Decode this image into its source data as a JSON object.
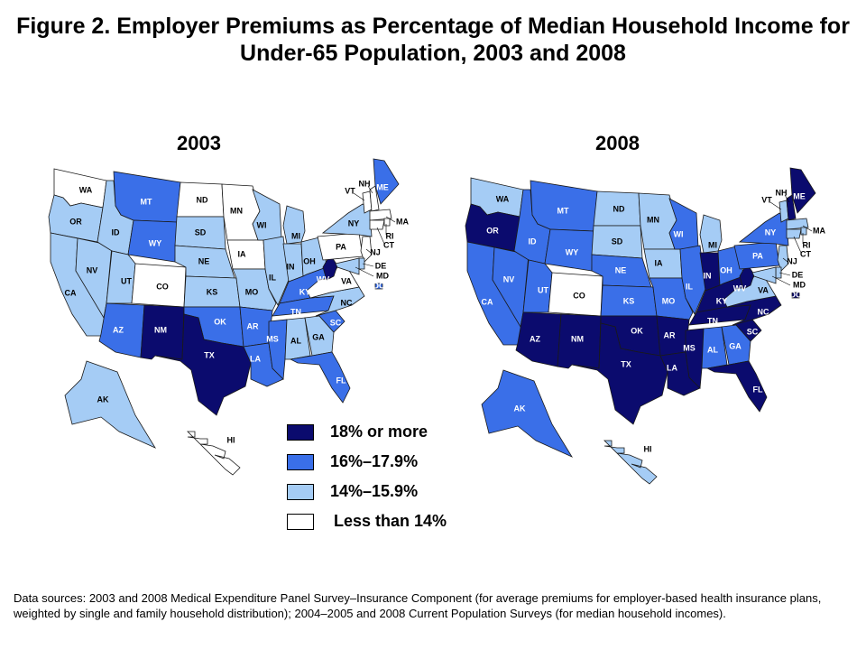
{
  "title": "Figure 2. Employer Premiums as Percentage of Median Household Income for Under-65 Population, 2003 and 2008",
  "colors": {
    "cat4": "#0b0b6e",
    "cat3": "#3a6fe8",
    "cat2": "#a5ccf5",
    "cat1": "#ffffff"
  },
  "legend": [
    {
      "key": "cat4",
      "label": "18% or more"
    },
    {
      "key": "cat3",
      "label": "16%–17.9%"
    },
    {
      "key": "cat2",
      "label": "14%–15.9%"
    },
    {
      "key": "cat1",
      "label": "Less than 14%"
    }
  ],
  "maps": [
    {
      "year": "2003",
      "states": {
        "WA": "cat1",
        "OR": "cat2",
        "CA": "cat2",
        "NV": "cat2",
        "ID": "cat2",
        "MT": "cat3",
        "WY": "cat3",
        "UT": "cat2",
        "CO": "cat1",
        "AZ": "cat3",
        "NM": "cat4",
        "ND": "cat1",
        "SD": "cat2",
        "NE": "cat2",
        "KS": "cat2",
        "OK": "cat3",
        "TX": "cat4",
        "MN": "cat1",
        "IA": "cat1",
        "MO": "cat2",
        "AR": "cat3",
        "LA": "cat3",
        "WI": "cat2",
        "IL": "cat2",
        "MI": "cat2",
        "IN": "cat2",
        "OH": "cat2",
        "KY": "cat3",
        "TN": "cat3",
        "MS": "cat3",
        "AL": "cat2",
        "GA": "cat2",
        "FL": "cat3",
        "SC": "cat3",
        "NC": "cat2",
        "VA": "cat1",
        "WV": "cat4",
        "PA": "cat1",
        "NY": "cat2",
        "ME": "cat3",
        "VT": "cat1",
        "NH": "cat1",
        "MA": "cat1",
        "RI": "cat1",
        "CT": "cat1",
        "NJ": "cat1",
        "DE": "cat2",
        "MD": "cat2",
        "DC": "cat3",
        "AK": "cat2",
        "HI": "cat1"
      }
    },
    {
      "year": "2008",
      "states": {
        "WA": "cat2",
        "OR": "cat4",
        "CA": "cat3",
        "NV": "cat3",
        "ID": "cat3",
        "MT": "cat3",
        "WY": "cat3",
        "UT": "cat3",
        "CO": "cat1",
        "AZ": "cat4",
        "NM": "cat4",
        "ND": "cat2",
        "SD": "cat2",
        "NE": "cat3",
        "KS": "cat3",
        "OK": "cat4",
        "TX": "cat4",
        "MN": "cat2",
        "IA": "cat2",
        "MO": "cat3",
        "AR": "cat4",
        "LA": "cat4",
        "WI": "cat3",
        "IL": "cat3",
        "MI": "cat2",
        "IN": "cat4",
        "OH": "cat3",
        "KY": "cat4",
        "TN": "cat4",
        "MS": "cat4",
        "AL": "cat3",
        "GA": "cat3",
        "FL": "cat4",
        "SC": "cat4",
        "NC": "cat4",
        "VA": "cat2",
        "WV": "cat4",
        "PA": "cat3",
        "NY": "cat3",
        "ME": "cat4",
        "VT": "cat2",
        "NH": "cat4",
        "MA": "cat2",
        "RI": "cat2",
        "CT": "cat2",
        "NJ": "cat2",
        "DE": "cat2",
        "MD": "cat2",
        "DC": "cat4",
        "AK": "cat3",
        "HI": "cat2"
      }
    }
  ],
  "sources": "Data sources: 2003 and 2008 Medical Expenditure Panel Survey–Insurance Component (for average premiums for employer-based health insurance plans, weighted by single and family household distribution); 2004–2005 and 2008 Current Population Surveys (for median household incomes)."
}
